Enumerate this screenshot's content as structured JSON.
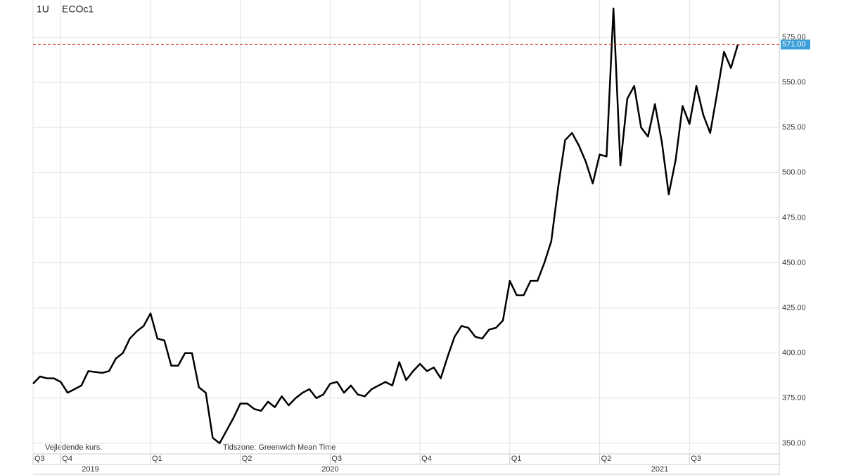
{
  "chart_data": {
    "type": "line",
    "title": "ECOc1",
    "interval": "1U",
    "values": [
      383,
      387,
      386,
      386,
      384,
      378,
      380,
      382,
      390,
      389.5,
      389,
      390,
      397,
      400,
      408,
      412,
      415,
      422,
      408,
      407,
      393,
      393,
      400,
      400,
      381,
      378,
      353,
      350,
      357,
      364,
      372,
      372,
      369,
      368,
      373,
      370,
      376,
      371,
      375,
      378,
      380,
      375,
      377,
      383,
      384,
      378,
      382,
      377,
      376,
      380,
      382,
      384,
      382,
      395,
      385,
      390,
      394,
      390,
      392,
      386,
      398,
      409,
      415,
      414,
      409,
      408,
      413,
      414,
      418,
      440,
      432,
      432,
      440,
      440,
      450,
      462,
      492,
      518,
      522,
      515,
      506,
      494,
      510,
      509,
      591,
      504,
      541,
      548,
      525,
      520,
      538,
      517,
      488,
      507,
      537,
      527,
      548,
      532,
      522,
      544,
      567,
      558,
      571
    ],
    "value_labels": [
      null,
      null,
      null,
      null,
      null,
      null,
      null,
      null,
      null,
      null,
      null,
      null,
      null,
      null,
      null,
      null,
      null,
      null,
      null,
      null,
      null,
      null,
      null,
      null,
      null,
      null,
      null,
      null,
      null,
      null,
      null,
      null,
      null,
      null,
      null,
      null,
      null,
      null,
      null,
      null,
      null,
      null,
      null,
      null,
      null,
      null,
      null,
      null,
      null,
      null,
      null,
      null,
      null,
      null,
      null,
      null,
      null,
      null,
      null,
      null,
      null,
      null,
      null,
      null,
      null,
      null,
      null,
      null,
      null,
      null,
      null,
      null,
      null,
      null,
      null,
      null,
      null,
      null,
      null,
      null,
      null,
      null,
      null,
      null,
      null,
      null,
      null,
      null,
      null,
      null,
      null,
      null,
      null,
      null,
      null,
      null,
      null,
      null,
      null,
      null,
      null,
      null,
      "571.00"
    ],
    "color": "#000000",
    "last_line_color": "#cc2222",
    "last_label_color": "#3d9fd8",
    "xlim": [
      0,
      108
    ],
    "xticks": [
      {
        "value": 0,
        "label": "Q3"
      },
      {
        "value": 4,
        "label": "Q4"
      },
      {
        "value": 17,
        "label": "Q1"
      },
      {
        "value": 30,
        "label": "Q2"
      },
      {
        "value": 43,
        "label": "Q3"
      },
      {
        "value": 56,
        "label": "Q4"
      },
      {
        "value": 69,
        "label": "Q1"
      },
      {
        "value": 82,
        "label": "Q2"
      },
      {
        "value": 95,
        "label": "Q3"
      }
    ],
    "year_labels": [
      {
        "value": 8.3,
        "label": "2019"
      },
      {
        "value": 43,
        "label": "2020"
      },
      {
        "value": 90.7,
        "label": "2021"
      }
    ],
    "ylim": [
      344.1,
      595.7
    ],
    "yticks": [
      {
        "value": 350,
        "label": "350.00"
      },
      {
        "value": 375,
        "label": "375.00"
      },
      {
        "value": 400,
        "label": "400.00"
      },
      {
        "value": 425,
        "label": "425.00"
      },
      {
        "value": 450,
        "label": "450.00"
      },
      {
        "value": 475,
        "label": "475.00"
      },
      {
        "value": 500,
        "label": "500.00"
      },
      {
        "value": 525,
        "label": "525.00"
      },
      {
        "value": 550,
        "label": "550.00"
      },
      {
        "value": 575,
        "label": "575.00"
      }
    ],
    "grid": true,
    "footer_left": "Vejledende kurs.",
    "footer_right": "Tidszone: Greenwich Mean Time"
  }
}
